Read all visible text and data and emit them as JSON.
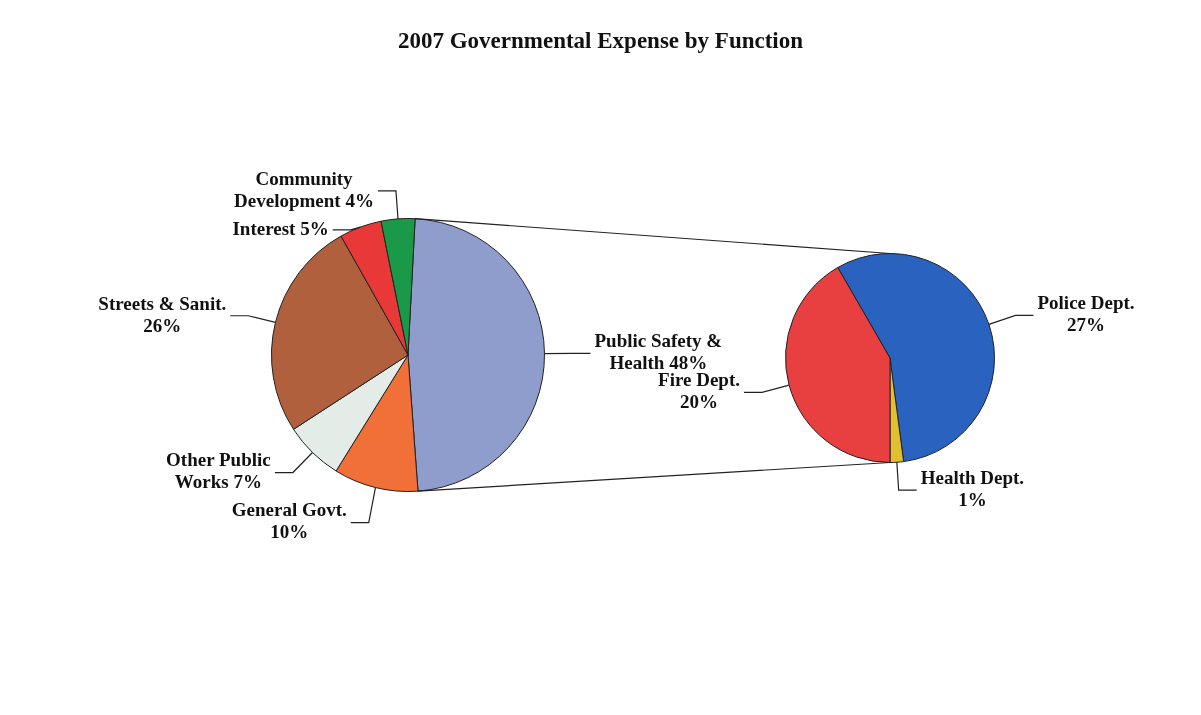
{
  "chart_data": [
    {
      "type": "pie",
      "title": "2007 Governmental Expense by Function",
      "categories": [
        "Public Safety & Health",
        "General Govt.",
        "Other Public Works",
        "Streets & Sanit.",
        "Interest",
        "Community Development"
      ],
      "values": [
        48,
        10,
        7,
        26,
        5,
        4
      ],
      "colors": [
        "#8e9dcb",
        "#f07038",
        "#e4ece8",
        "#b0603c",
        "#e83838",
        "#1a9a48"
      ],
      "value_labels": [
        "48%",
        "10%",
        "7%",
        "26%",
        "5%",
        "4%"
      ]
    },
    {
      "type": "pie",
      "categories": [
        "Police Dept.",
        "Health Dept.",
        "Fire Dept."
      ],
      "values": [
        27,
        1,
        20
      ],
      "colors": [
        "#2a62c0",
        "#e0c030",
        "#e84040"
      ],
      "value_labels": [
        "27%",
        "1%",
        "20%"
      ]
    }
  ]
}
